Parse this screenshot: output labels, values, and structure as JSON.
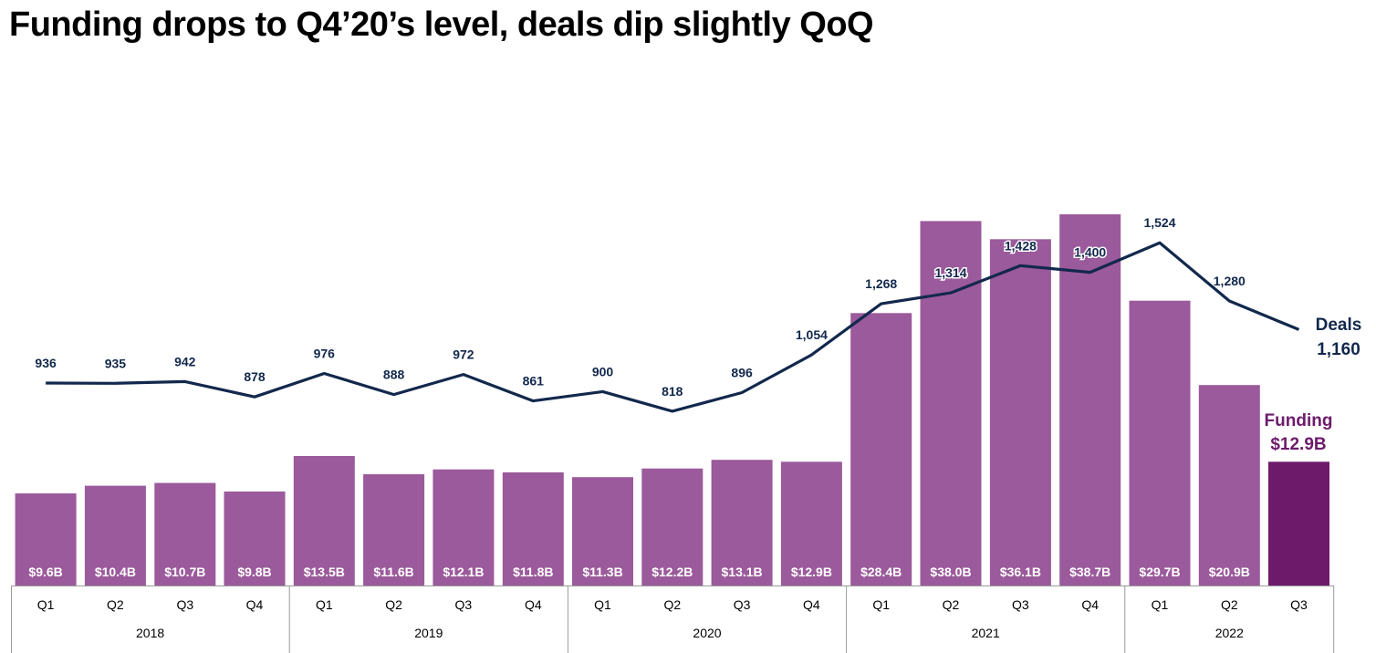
{
  "title": "Funding drops to Q4’20’s level, deals dip slightly QoQ",
  "colors": {
    "bar": "#9b5a9b",
    "bar_latest": "#6d1a6b",
    "line": "#12284c"
  },
  "chart_data": {
    "type": "bar+line",
    "title": "Funding drops to Q4’20’s level, deals dip slightly QoQ",
    "quarters": [
      "Q1",
      "Q2",
      "Q3",
      "Q4",
      "Q1",
      "Q2",
      "Q3",
      "Q4",
      "Q1",
      "Q2",
      "Q3",
      "Q4",
      "Q1",
      "Q2",
      "Q3",
      "Q4",
      "Q1",
      "Q2",
      "Q3"
    ],
    "years": [
      {
        "label": "2018",
        "count": 4
      },
      {
        "label": "2019",
        "count": 4
      },
      {
        "label": "2020",
        "count": 4
      },
      {
        "label": "2021",
        "count": 4
      },
      {
        "label": "2022",
        "count": 3
      }
    ],
    "funding_billions": [
      9.6,
      10.4,
      10.7,
      9.8,
      13.5,
      11.6,
      12.1,
      11.8,
      11.3,
      12.2,
      13.1,
      12.9,
      28.4,
      38.0,
      36.1,
      38.7,
      29.7,
      20.9,
      12.9
    ],
    "funding_labels": [
      "$9.6B",
      "$10.4B",
      "$10.7B",
      "$9.8B",
      "$13.5B",
      "$11.6B",
      "$12.1B",
      "$11.8B",
      "$11.3B",
      "$12.2B",
      "$13.1B",
      "$12.9B",
      "$28.4B",
      "$38.0B",
      "$36.1B",
      "$38.7B",
      "$29.7B",
      "$20.9B",
      ""
    ],
    "deals": [
      936,
      935,
      942,
      878,
      976,
      888,
      972,
      861,
      900,
      818,
      896,
      1054,
      1268,
      1314,
      1428,
      1400,
      1524,
      1280,
      1160
    ],
    "deal_labels": [
      "936",
      "935",
      "942",
      "878",
      "976",
      "888",
      "972",
      "861",
      "900",
      "818",
      "896",
      "1,054",
      "1,268",
      "1,314",
      "1,428",
      "1,400",
      "1,524",
      "1,280",
      ""
    ],
    "series": [
      {
        "name": "Funding",
        "type": "bar",
        "last_value_label": "$12.9B"
      },
      {
        "name": "Deals",
        "type": "line",
        "last_value_label": "1,160"
      }
    ]
  }
}
